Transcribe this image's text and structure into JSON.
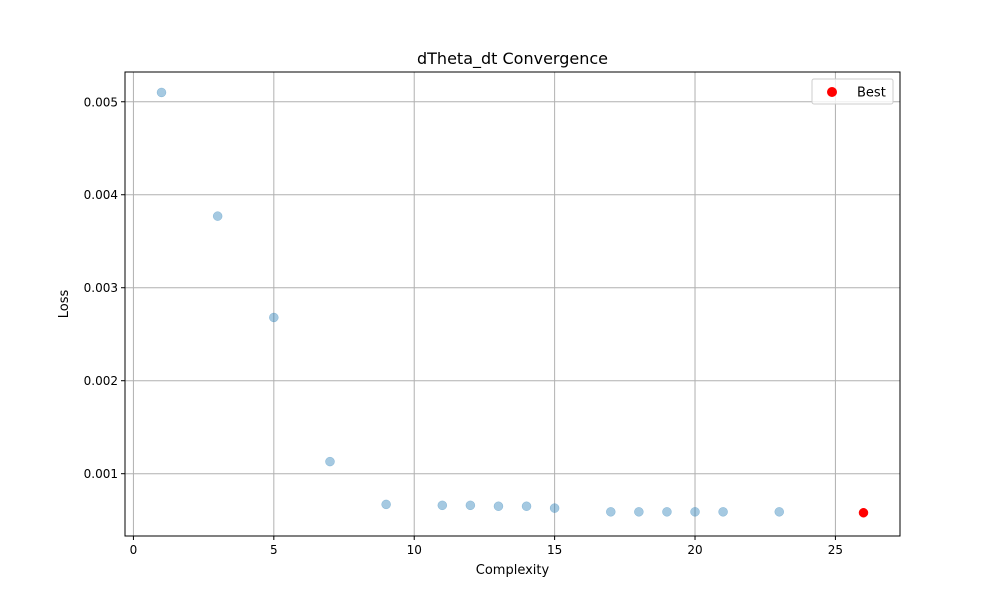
{
  "chart_data": {
    "type": "scatter",
    "title": "dTheta_dt Convergence",
    "xlabel": "Complexity",
    "ylabel": "Loss",
    "xlim": [
      -0.3,
      27.3
    ],
    "ylim": [
      0.00033,
      0.00532
    ],
    "xticks": [
      0,
      5,
      10,
      15,
      20,
      25
    ],
    "xtick_labels": [
      "0",
      "5",
      "10",
      "15",
      "20",
      "25"
    ],
    "yticks": [
      0.001,
      0.002,
      0.003,
      0.004,
      0.005
    ],
    "ytick_labels": [
      "0.001",
      "0.002",
      "0.003",
      "0.004",
      "0.005"
    ],
    "grid": true,
    "legend_position": "top-right",
    "series": [
      {
        "color": "#1f77b4",
        "alpha": 0.4,
        "points": [
          {
            "x": 1,
            "y": 0.0051
          },
          {
            "x": 3,
            "y": 0.00377
          },
          {
            "x": 5,
            "y": 0.00268
          },
          {
            "x": 7,
            "y": 0.00113
          },
          {
            "x": 9,
            "y": 0.00067
          },
          {
            "x": 11,
            "y": 0.00066
          },
          {
            "x": 12,
            "y": 0.00066
          },
          {
            "x": 13,
            "y": 0.00065
          },
          {
            "x": 14,
            "y": 0.00065
          },
          {
            "x": 15,
            "y": 0.00063
          },
          {
            "x": 17,
            "y": 0.00059
          },
          {
            "x": 18,
            "y": 0.00059
          },
          {
            "x": 19,
            "y": 0.00059
          },
          {
            "x": 20,
            "y": 0.00059
          },
          {
            "x": 21,
            "y": 0.00059
          },
          {
            "x": 23,
            "y": 0.00059
          }
        ]
      },
      {
        "name": "Best",
        "color": "#ff0000",
        "alpha": 1.0,
        "points": [
          {
            "x": 26,
            "y": 0.00058
          }
        ]
      }
    ]
  }
}
